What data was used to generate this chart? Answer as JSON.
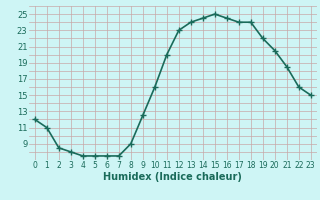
{
  "x": [
    0,
    1,
    2,
    3,
    4,
    5,
    6,
    7,
    8,
    9,
    10,
    11,
    12,
    13,
    14,
    15,
    16,
    17,
    18,
    19,
    20,
    21,
    22,
    23
  ],
  "y": [
    12,
    11,
    8.5,
    8,
    7.5,
    7.5,
    7.5,
    7.5,
    9,
    12.5,
    16,
    20,
    23,
    24,
    24.5,
    25,
    24.5,
    24,
    24,
    22,
    20.5,
    18.5,
    16,
    15
  ],
  "line_color": "#1a6b5a",
  "marker": "+",
  "marker_size": 4,
  "marker_linewidth": 1.0,
  "line_width": 1.2,
  "bg_color": "#cef5f5",
  "grid_color_major": "#c8a8a8",
  "grid_color_minor": "#c8a8a8",
  "xlabel": "Humidex (Indice chaleur)",
  "xlabel_fontsize": 7,
  "xlabel_color": "#1a6b5a",
  "tick_fontsize": 5.5,
  "ytick_fontsize": 6,
  "ylim": [
    7,
    26
  ],
  "xlim": [
    -0.5,
    23.5
  ],
  "yticks": [
    9,
    11,
    13,
    15,
    17,
    19,
    21,
    23,
    25
  ],
  "xticks": [
    0,
    1,
    2,
    3,
    4,
    5,
    6,
    7,
    8,
    9,
    10,
    11,
    12,
    13,
    14,
    15,
    16,
    17,
    18,
    19,
    20,
    21,
    22,
    23
  ]
}
